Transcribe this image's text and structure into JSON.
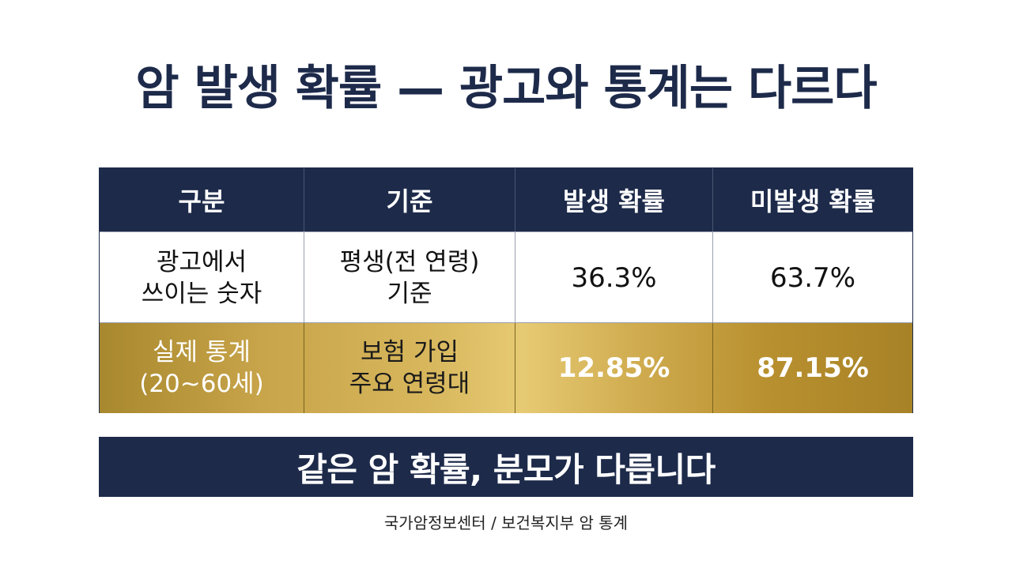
{
  "title": "암 발생 확률 — 광고와 통계는 다르다",
  "table": {
    "headers": [
      "구분",
      "기준",
      "발생 확률",
      "미발생 확률"
    ],
    "rows": [
      {
        "category": [
          "광고에서",
          "쓰이는 숫자"
        ],
        "basis": [
          "평생(전 연령)",
          "기준"
        ],
        "occurrence": "36.3%",
        "non_occurrence": "63.7%"
      },
      {
        "category": [
          "실제 통계",
          "(20~60세)"
        ],
        "basis": [
          "보험 가입",
          "주요 연령대"
        ],
        "occurrence": "12.85%",
        "non_occurrence": "87.15%"
      }
    ]
  },
  "banner": "같은 암 확률, 분모가 다릅니다",
  "source": "국가암정보센터 / 보건복지부 암 통계",
  "colors": {
    "navy": "#1d2a4a",
    "gold": "#c8a44a",
    "white": "#ffffff"
  }
}
